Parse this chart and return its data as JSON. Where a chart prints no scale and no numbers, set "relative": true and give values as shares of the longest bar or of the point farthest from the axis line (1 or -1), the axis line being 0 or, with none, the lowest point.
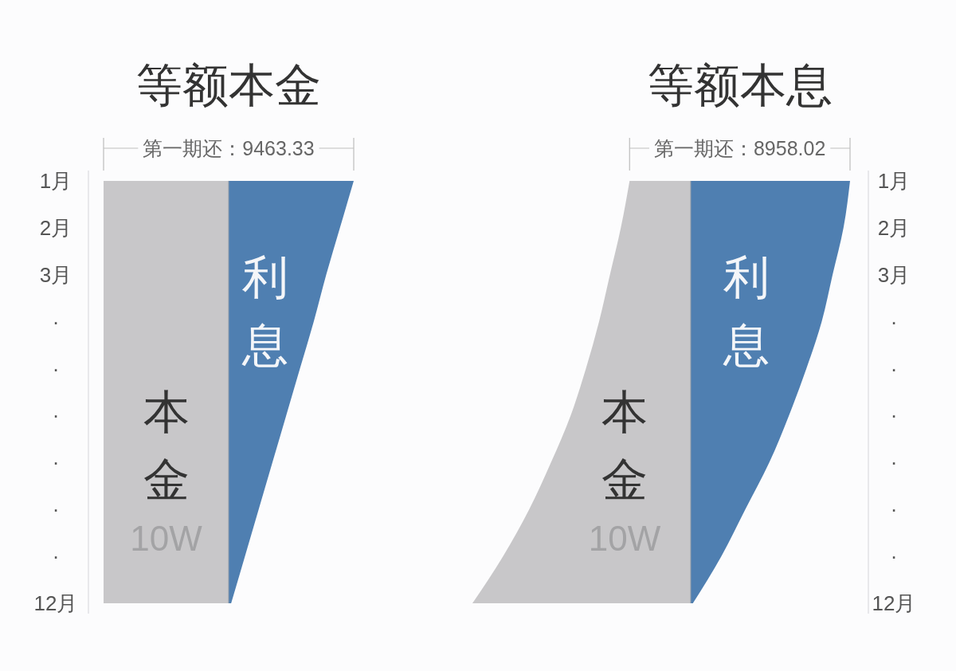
{
  "chart_data": [
    {
      "type": "area",
      "orientation": "horizontal",
      "relative": true,
      "title": "等额本金",
      "categories": [
        "1月",
        "2月",
        "3月",
        "·",
        "·",
        "·",
        "·",
        "·",
        "·",
        "12月"
      ],
      "series": [
        {
          "name": "本金",
          "color": "#c8c7c9",
          "values": [
            -1,
            -1,
            -1,
            -1,
            -1,
            -1,
            -1,
            -1,
            -1,
            -1
          ]
        },
        {
          "name": "利息",
          "color": "#4f7fb1",
          "values": [
            1.0,
            0.89,
            0.78,
            0.68,
            0.57,
            0.46,
            0.35,
            0.24,
            0.13,
            0.02
          ]
        }
      ],
      "annotations": [
        "第一期还：9463.33",
        "10W"
      ]
    },
    {
      "type": "area",
      "orientation": "horizontal",
      "relative": true,
      "title": "等额本息",
      "categories": [
        "1月",
        "2月",
        "3月",
        "·",
        "·",
        "·",
        "·",
        "·",
        "·",
        "12月"
      ],
      "series": [
        {
          "name": "本金",
          "color": "#c8c7c9",
          "values": [
            -0.28,
            -0.32,
            -0.37,
            -0.42,
            -0.48,
            -0.55,
            -0.64,
            -0.74,
            -0.86,
            -1
          ]
        },
        {
          "name": "利息",
          "color": "#4f7fb1",
          "values": [
            0.73,
            0.7,
            0.65,
            0.6,
            0.53,
            0.45,
            0.36,
            0.25,
            0.14,
            0.01
          ]
        }
      ],
      "annotations": [
        "第一期还：8958.02",
        "10W"
      ]
    }
  ]
}
